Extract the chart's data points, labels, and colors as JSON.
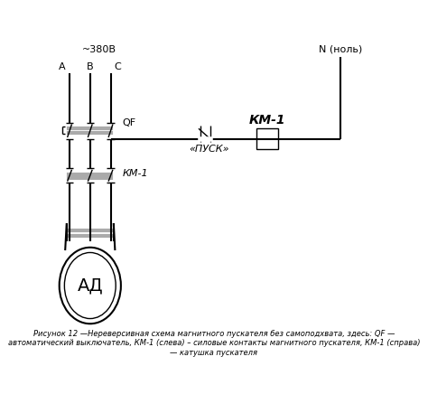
{
  "caption": "Рисунок 12 —Нереверсивная схема магнитного пускателя без самоподхвата, здесь: QF —\nавтоматический выключатель, КМ-1 (слева) – силовые контакты магнитного пускателя, КМ-1 (справа)\n— катушка пускателя",
  "bg_color": "#ffffff",
  "line_color": "#000000",
  "text_color": "#000000",
  "figsize": [
    4.74,
    4.36
  ],
  "dpi": 100,
  "label_380": "~380В",
  "label_A": "A",
  "label_B": "B",
  "label_C": "C",
  "label_QF": "QF",
  "label_KM1_left": "КМ-1",
  "label_KM1_right": "КМ-1",
  "label_pusk": "«ПУСК»",
  "label_N": "N (ноль)",
  "label_motor": "АД"
}
